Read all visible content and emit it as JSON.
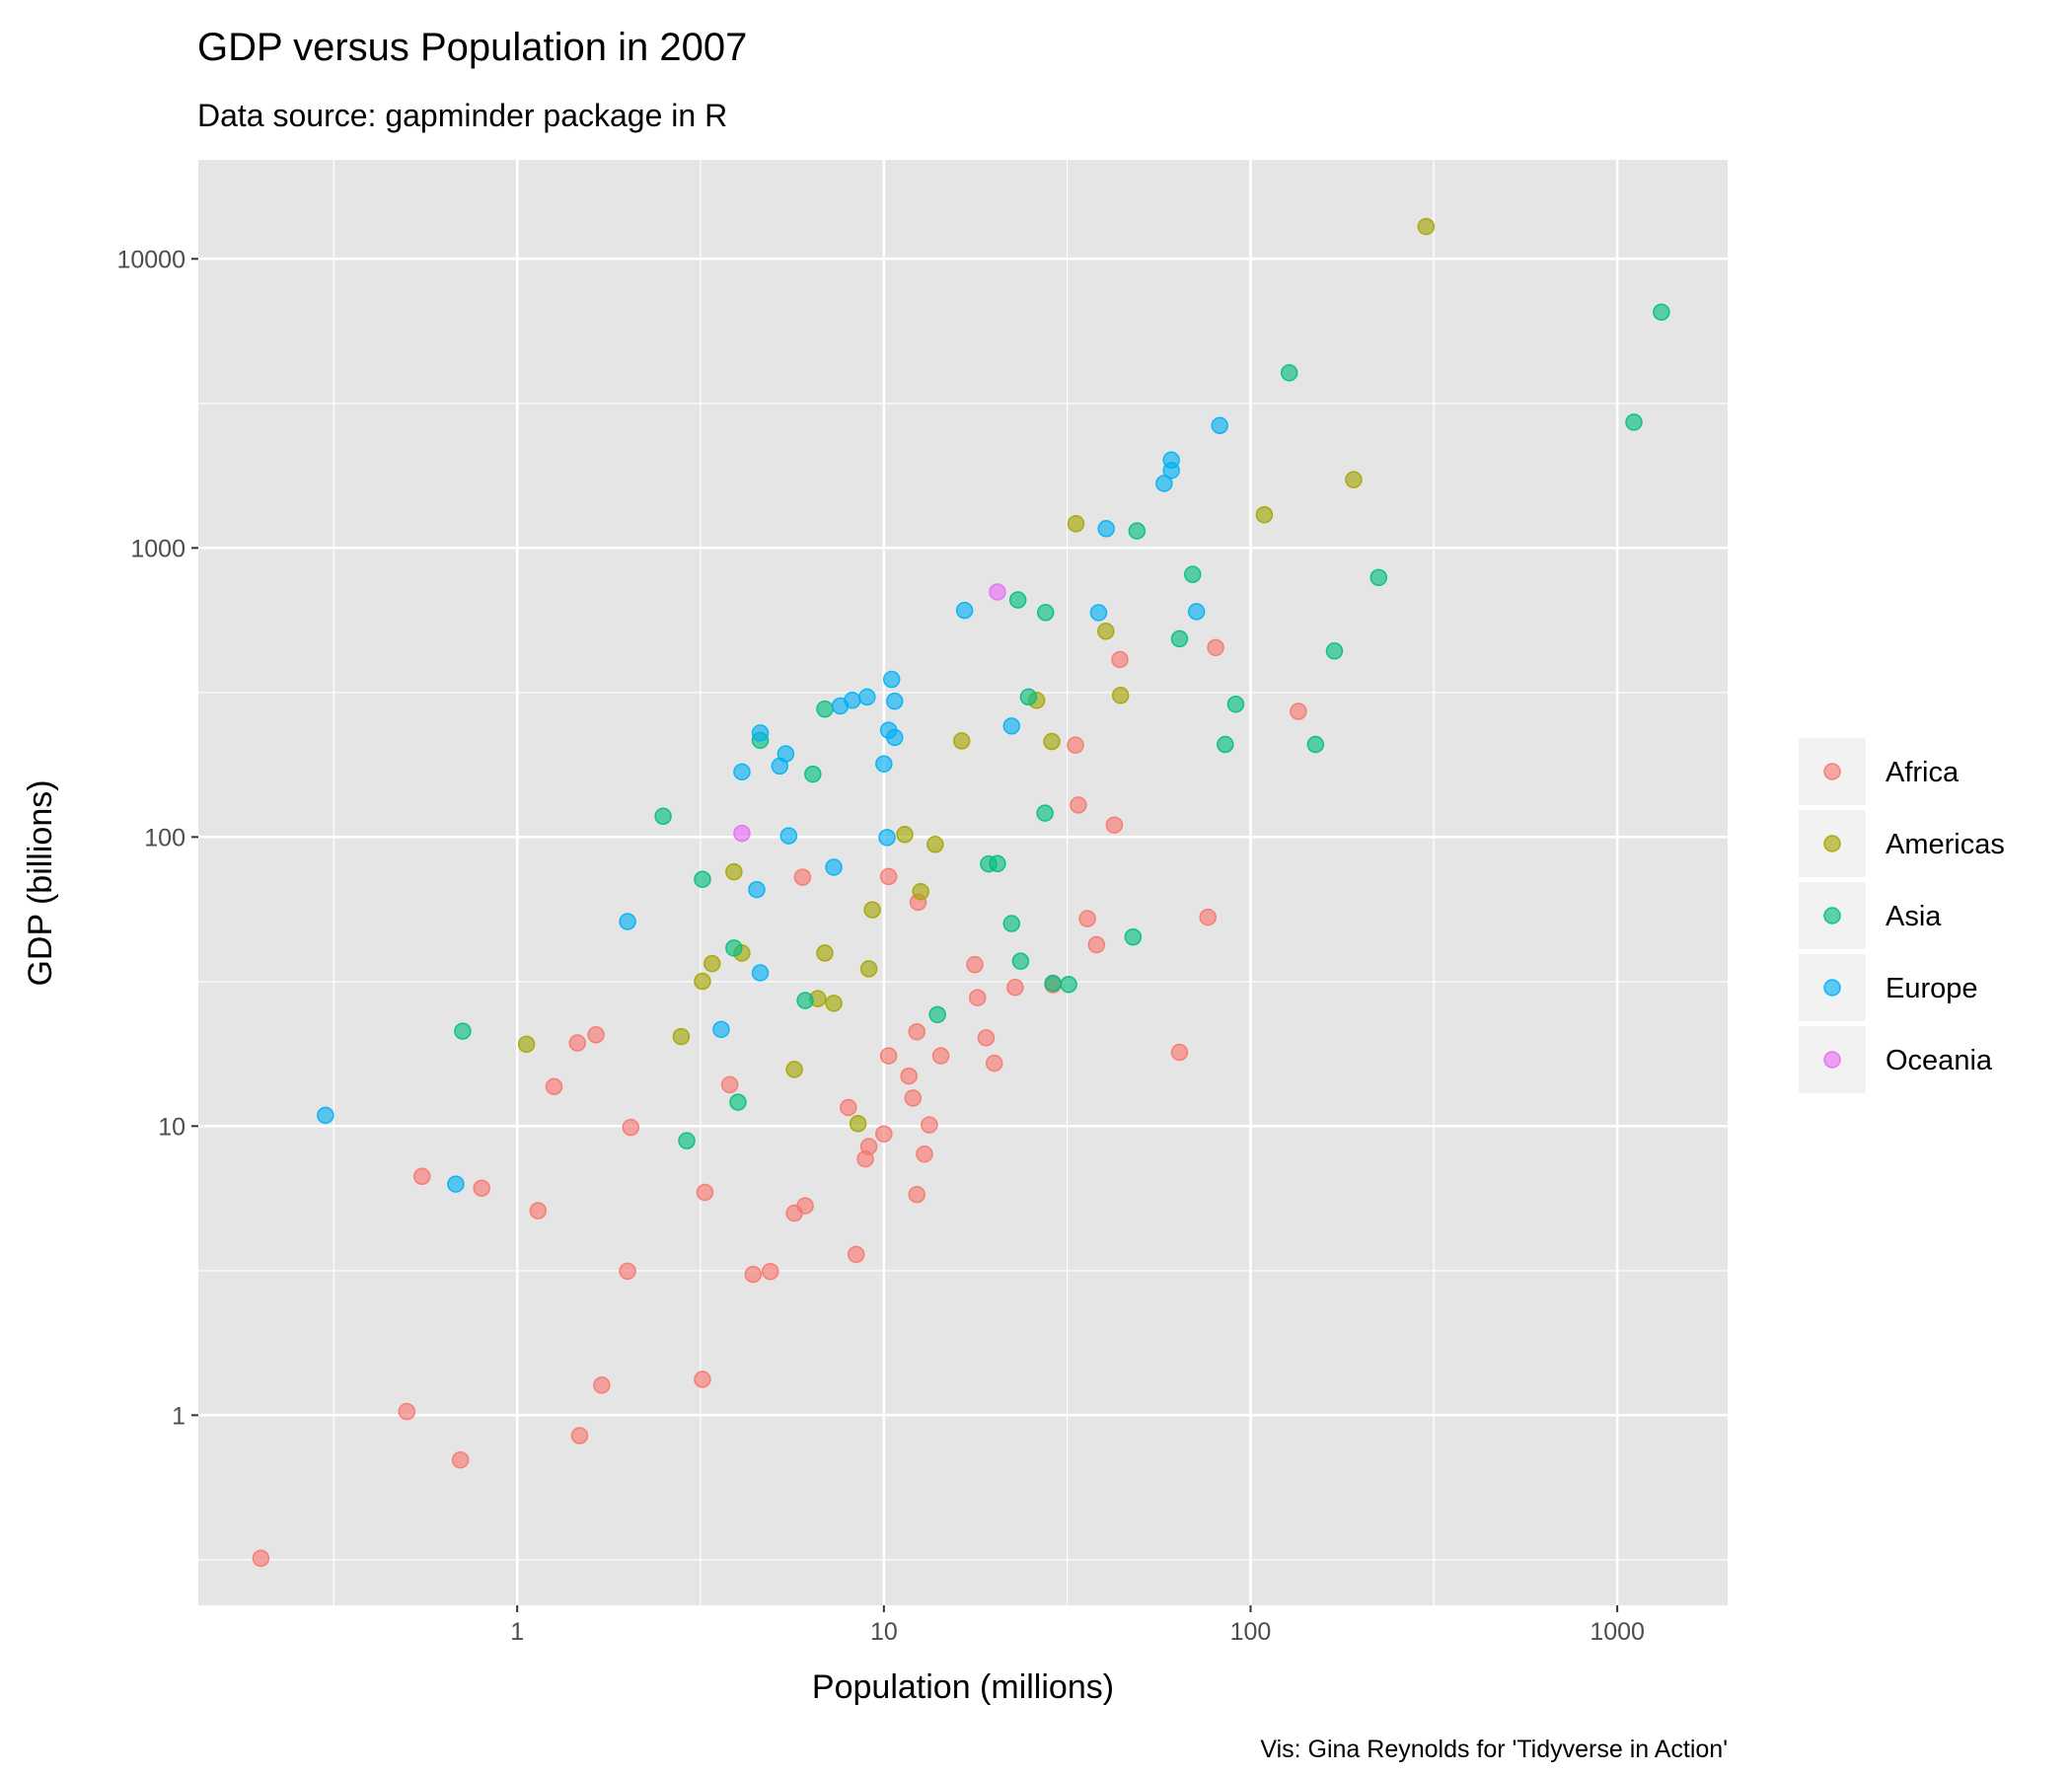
{
  "chart_data": {
    "type": "scatter",
    "title": "GDP versus Population in 2007",
    "subtitle": "Data source: gapminder package in R",
    "caption": "Vis: Gina Reynolds for 'Tidyverse in Action'",
    "xlabel": "Population (millions)",
    "ylabel": "GDP (billions)",
    "x_scale": "log10",
    "y_scale": "log10",
    "xlim": [
      0.135,
      2000
    ],
    "ylim": [
      0.22,
      22000
    ],
    "x_ticks": [
      1,
      10,
      100,
      1000
    ],
    "x_tick_labels": [
      "1",
      "10",
      "100",
      "1000"
    ],
    "y_ticks": [
      1,
      10,
      100,
      1000,
      10000
    ],
    "y_tick_labels": [
      "1",
      "10",
      "100",
      "1000",
      "10000"
    ],
    "grid": true,
    "legend_position": "right",
    "colors": {
      "Africa": "#F8766D",
      "Americas": "#A3A500",
      "Asia": "#00BF7D",
      "Europe": "#00B0F6",
      "Oceania": "#E76BF3",
      "panel_background": "#E5E5E5",
      "grid": "#FFFFFF",
      "legend_key_background": "#F2F2F2"
    },
    "legend": [
      "Africa",
      "Americas",
      "Asia",
      "Europe",
      "Oceania"
    ],
    "series": [
      {
        "name": "Africa",
        "points": [
          [
            0.2,
            0.32
          ],
          [
            0.5,
            1.03
          ],
          [
            0.7,
            0.7
          ],
          [
            0.55,
            6.7
          ],
          [
            0.8,
            6.1
          ],
          [
            1.14,
            5.1
          ],
          [
            1.26,
            13.7
          ],
          [
            1.46,
            19.4
          ],
          [
            1.48,
            0.85
          ],
          [
            1.64,
            20.7
          ],
          [
            1.7,
            1.27
          ],
          [
            2.0,
            3.15
          ],
          [
            2.04,
            9.9
          ],
          [
            3.2,
            1.33
          ],
          [
            3.25,
            5.9
          ],
          [
            3.8,
            13.9
          ],
          [
            4.4,
            3.07
          ],
          [
            4.9,
            3.14
          ],
          [
            5.7,
            5.0
          ],
          [
            6.0,
            72.6
          ],
          [
            6.1,
            5.3
          ],
          [
            8.0,
            11.6
          ],
          [
            8.4,
            3.6
          ],
          [
            8.9,
            7.7
          ],
          [
            9.1,
            8.5
          ],
          [
            10.0,
            9.4
          ],
          [
            10.3,
            17.5
          ],
          [
            10.3,
            73.0
          ],
          [
            11.7,
            14.9
          ],
          [
            12.0,
            12.5
          ],
          [
            12.3,
            21.2
          ],
          [
            12.4,
            59.5
          ],
          [
            12.3,
            5.8
          ],
          [
            12.9,
            8.0
          ],
          [
            13.3,
            10.1
          ],
          [
            14.3,
            17.5
          ],
          [
            17.7,
            36.2
          ],
          [
            18.0,
            27.8
          ],
          [
            19.0,
            20.2
          ],
          [
            20.0,
            16.5
          ],
          [
            22.8,
            30.2
          ],
          [
            28.9,
            30.8
          ],
          [
            33.3,
            208
          ],
          [
            33.9,
            129
          ],
          [
            35.9,
            52.2
          ],
          [
            38.0,
            42.4
          ],
          [
            42.5,
            110
          ],
          [
            44.0,
            411
          ],
          [
            64.0,
            18.0
          ],
          [
            76.5,
            52.8
          ],
          [
            80.3,
            452
          ],
          [
            135,
            272
          ]
        ]
      },
      {
        "name": "Americas",
        "points": [
          [
            1.06,
            19.2
          ],
          [
            2.8,
            20.4
          ],
          [
            3.2,
            31.7
          ],
          [
            3.4,
            36.5
          ],
          [
            3.9,
            75.8
          ],
          [
            4.1,
            39.7
          ],
          [
            5.7,
            15.7
          ],
          [
            6.6,
            27.6
          ],
          [
            6.9,
            39.7
          ],
          [
            7.3,
            26.6
          ],
          [
            8.5,
            10.2
          ],
          [
            9.1,
            35.0
          ],
          [
            9.3,
            56.0
          ],
          [
            11.4,
            102
          ],
          [
            12.6,
            64.7
          ],
          [
            13.8,
            94.3
          ],
          [
            16.3,
            215
          ],
          [
            26.1,
            297
          ],
          [
            28.7,
            214
          ],
          [
            33.4,
            1213
          ],
          [
            40.3,
            515
          ],
          [
            44.2,
            309
          ],
          [
            109,
            1302
          ],
          [
            191,
            1722
          ],
          [
            301,
            12935
          ]
        ]
      },
      {
        "name": "Asia",
        "points": [
          [
            0.71,
            21.3
          ],
          [
            2.5,
            118
          ],
          [
            2.9,
            8.9
          ],
          [
            3.2,
            71.4
          ],
          [
            3.9,
            41.3
          ],
          [
            4.0,
            12.1
          ],
          [
            4.6,
            216
          ],
          [
            6.1,
            27.2
          ],
          [
            6.4,
            165
          ],
          [
            6.9,
            277
          ],
          [
            14.0,
            24.3
          ],
          [
            19.3,
            80.7
          ],
          [
            20.4,
            80.9
          ],
          [
            22.3,
            50.2
          ],
          [
            23.2,
            661
          ],
          [
            23.6,
            37.2
          ],
          [
            24.8,
            305
          ],
          [
            27.5,
            121
          ],
          [
            27.6,
            598
          ],
          [
            28.9,
            31.2
          ],
          [
            31.9,
            30.9
          ],
          [
            47.8,
            45.1
          ],
          [
            49.0,
            1145
          ],
          [
            64.0,
            485
          ],
          [
            69.5,
            810
          ],
          [
            85.3,
            209
          ],
          [
            91.1,
            288
          ],
          [
            127.5,
            4035
          ],
          [
            150.4,
            209
          ],
          [
            169.3,
            440
          ],
          [
            223.5,
            790
          ],
          [
            1110,
            2722
          ],
          [
            1319,
            6540
          ]
        ]
      },
      {
        "name": "Europe",
        "points": [
          [
            0.3,
            10.9
          ],
          [
            0.68,
            6.3
          ],
          [
            2.0,
            51.0
          ],
          [
            3.6,
            21.6
          ],
          [
            4.1,
            168
          ],
          [
            4.5,
            65.8
          ],
          [
            4.6,
            33.9
          ],
          [
            4.6,
            229
          ],
          [
            5.2,
            176
          ],
          [
            5.4,
            194
          ],
          [
            5.5,
            101
          ],
          [
            7.3,
            78.6
          ],
          [
            7.6,
            284
          ],
          [
            8.2,
            297
          ],
          [
            9.0,
            305
          ],
          [
            10.0,
            179
          ],
          [
            10.2,
            99.6
          ],
          [
            10.3,
            234
          ],
          [
            10.5,
            351
          ],
          [
            10.7,
            221
          ],
          [
            10.7,
            295
          ],
          [
            16.6,
            608
          ],
          [
            22.3,
            242
          ],
          [
            38.5,
            597
          ],
          [
            40.4,
            1166
          ],
          [
            58.1,
            1671
          ],
          [
            60.8,
            2013
          ],
          [
            60.8,
            1853
          ],
          [
            71.2,
            602
          ],
          [
            82.4,
            2651
          ]
        ]
      },
      {
        "name": "Oceania",
        "points": [
          [
            4.1,
            103
          ],
          [
            20.4,
            704
          ]
        ]
      }
    ]
  }
}
